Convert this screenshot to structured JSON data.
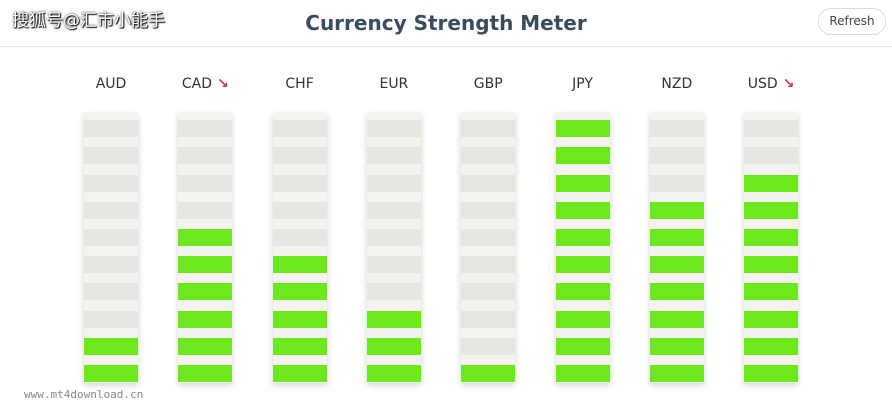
{
  "watermark_top": "搜狐号@汇市小能手",
  "watermark_bottom": "www.mt4download.cn",
  "header": {
    "title": "Currency Strength Meter",
    "button": "Refresh"
  },
  "meter": {
    "segments": 10,
    "on_color": "#6be81e",
    "off_color": "#e8e6e1",
    "arrow_color": "#d23a3f",
    "currencies": [
      {
        "name": "AUD",
        "strength": 2
      },
      {
        "name": "CAD",
        "strength": 6,
        "trend": "down"
      },
      {
        "name": "CHF",
        "strength": 5
      },
      {
        "name": "EUR",
        "strength": 3
      },
      {
        "name": "GBP",
        "strength": 1
      },
      {
        "name": "JPY",
        "strength": 10
      },
      {
        "name": "NZD",
        "strength": 7
      },
      {
        "name": "USD",
        "strength": 8,
        "trend": "down"
      }
    ]
  }
}
